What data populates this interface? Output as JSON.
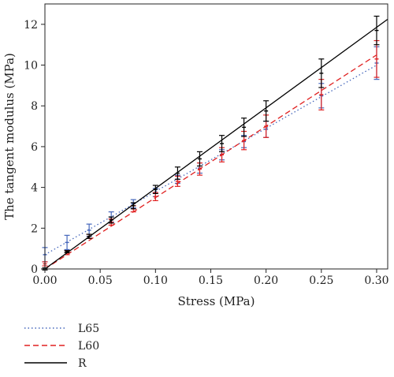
{
  "chart_data": {
    "type": "line",
    "title": "",
    "xlabel": "Stress (MPa)",
    "ylabel": "The tangent modulus (MPa)",
    "xlim": [
      0,
      0.31
    ],
    "ylim": [
      0,
      13
    ],
    "xticks": [
      0.0,
      0.05,
      0.1,
      0.15,
      0.2,
      0.25,
      0.3
    ],
    "xtick_labels": [
      "0.00",
      "0.05",
      "0.10",
      "0.15",
      "0.20",
      "0.25",
      "0.30"
    ],
    "yticks": [
      0,
      2,
      4,
      6,
      8,
      10,
      12
    ],
    "ytick_labels": [
      "0",
      "2",
      "4",
      "6",
      "8",
      "10",
      "12"
    ],
    "grid": false,
    "legend_position": "below-left",
    "x": [
      0.0,
      0.02,
      0.04,
      0.06,
      0.08,
      0.1,
      0.12,
      0.14,
      0.16,
      0.18,
      0.2,
      0.25,
      0.3
    ],
    "series": [
      {
        "name": "L65",
        "color": "#4466bb",
        "line_style": "dotted",
        "line_x": [
          0.0,
          0.3
        ],
        "line_y": [
          0.7,
          10.0
        ],
        "values": [
          0.7,
          1.3,
          1.9,
          2.55,
          3.2,
          3.75,
          4.4,
          4.95,
          5.6,
          6.25,
          6.85,
          8.5,
          10.1
        ],
        "errors": [
          0.35,
          0.35,
          0.3,
          0.25,
          0.2,
          0.2,
          0.2,
          0.25,
          0.25,
          0.3,
          0.4,
          0.6,
          0.8
        ]
      },
      {
        "name": "L60",
        "color": "#e02020",
        "line_style": "dashed",
        "line_x": [
          0.0,
          0.3
        ],
        "line_y": [
          0.0,
          10.5
        ],
        "values": [
          0.25,
          0.8,
          1.6,
          2.3,
          2.95,
          3.55,
          4.3,
          4.9,
          5.6,
          6.3,
          7.0,
          8.55,
          10.3
        ],
        "errors": [
          0.1,
          0.1,
          0.1,
          0.15,
          0.15,
          0.2,
          0.25,
          0.3,
          0.35,
          0.45,
          0.55,
          0.75,
          0.9
        ]
      },
      {
        "name": "R",
        "color": "#000000",
        "line_style": "solid",
        "line_x": [
          0.0,
          0.31
        ],
        "line_y": [
          0.0,
          12.25
        ],
        "values": [
          0.0,
          0.85,
          1.6,
          2.4,
          3.1,
          3.9,
          4.7,
          5.4,
          6.15,
          6.95,
          7.75,
          9.6,
          11.7
        ],
        "errors": [
          0.05,
          0.05,
          0.1,
          0.15,
          0.15,
          0.2,
          0.3,
          0.35,
          0.4,
          0.45,
          0.5,
          0.7,
          0.7
        ]
      }
    ]
  }
}
